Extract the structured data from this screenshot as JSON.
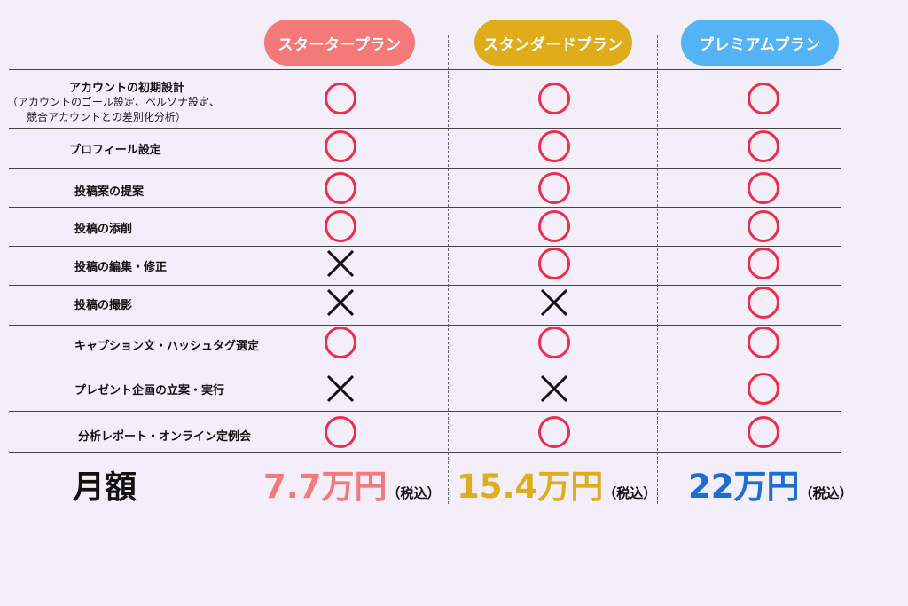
{
  "plans": [
    {
      "id": "starter",
      "label": "スタータープラン",
      "color": "#f47a7a"
    },
    {
      "id": "standard",
      "label": "スタンダードプラン",
      "color": "#dfad1a"
    },
    {
      "id": "premium",
      "label": "プレミアムプラン",
      "color": "#54b3f5"
    }
  ],
  "features": [
    {
      "label": "アカウントの初期設計",
      "sub_line1": "（アカウントのゴール設定、ペルソナ設定、",
      "sub_line2": "競合アカウントとの差別化分析）",
      "marks": [
        "circle",
        "circle",
        "circle"
      ]
    },
    {
      "label": "プロフィール設定",
      "marks": [
        "circle",
        "circle",
        "circle"
      ]
    },
    {
      "label": "投稿案の提案",
      "marks": [
        "circle",
        "circle",
        "circle"
      ]
    },
    {
      "label": "投稿の添削",
      "marks": [
        "circle",
        "circle",
        "circle"
      ]
    },
    {
      "label": "投稿の編集・修正",
      "marks": [
        "cross",
        "circle",
        "circle"
      ]
    },
    {
      "label": "投稿の撮影",
      "marks": [
        "cross",
        "cross",
        "circle"
      ]
    },
    {
      "label": "キャプション文・ハッシュタグ選定",
      "marks": [
        "circle",
        "circle",
        "circle"
      ]
    },
    {
      "label": "プレゼント企画の立案・実行",
      "marks": [
        "cross",
        "cross",
        "circle"
      ]
    },
    {
      "label": "分析レポート・オンライン定例会",
      "marks": [
        "circle",
        "circle",
        "circle"
      ]
    }
  ],
  "pricing": {
    "heading": "月額",
    "tax_note": "（税込）",
    "starter": "7.7万円",
    "standard": "15.4万円",
    "premium": "22万円",
    "colors": {
      "starter": "#f47a7a",
      "standard": "#dfad1a",
      "premium": "#1a6fd0"
    }
  },
  "mark_colors": {
    "circle": "#ee2d47",
    "cross": "#111111"
  }
}
